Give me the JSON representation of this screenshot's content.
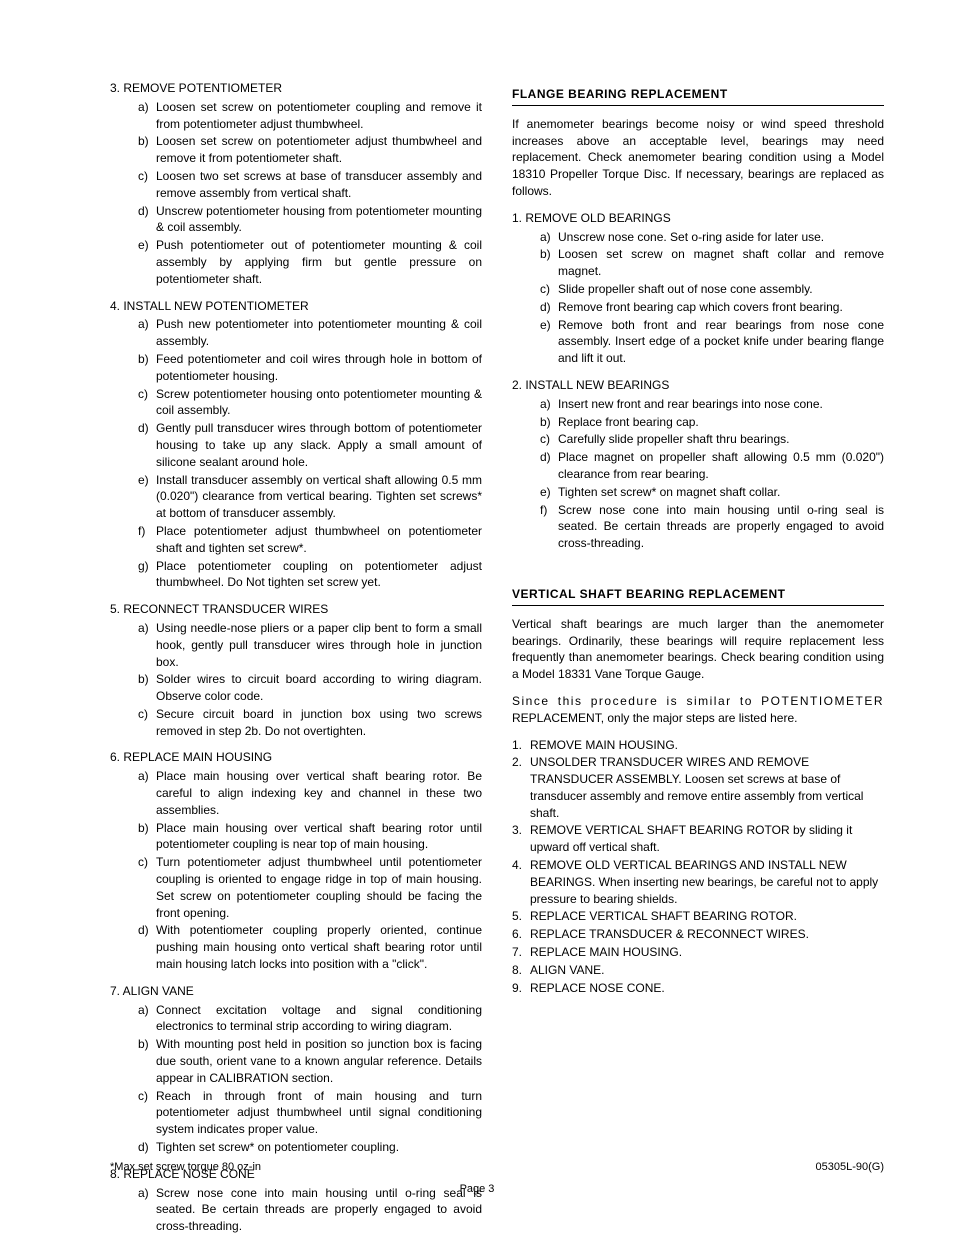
{
  "left": {
    "items": [
      {
        "num": "3.",
        "label": "REMOVE POTENTIOMETER",
        "subs": [
          {
            "l": "a)",
            "t": "Loosen set screw on potentiometer coupling and remove it from potentiometer adjust thumbwheel."
          },
          {
            "l": "b)",
            "t": "Loosen set screw on potentiometer adjust thumbwheel and remove it from potentiometer shaft."
          },
          {
            "l": "c)",
            "t": "Loosen two set screws at base of transducer assembly and remove assembly from vertical shaft."
          },
          {
            "l": "d)",
            "t": "Unscrew potentiometer housing from potentiometer mounting & coil assembly."
          },
          {
            "l": "e)",
            "t": "Push potentiometer out of potentiometer mounting & coil assembly by applying firm but gentle pressure on potentiometer shaft."
          }
        ]
      },
      {
        "num": "4.",
        "label": "INSTALL NEW  POTENTIOMETER",
        "subs": [
          {
            "l": "a)",
            "t": "Push new potentiometer into potentiometer mounting & coil assembly."
          },
          {
            "l": "b)",
            "t": "Feed potentiometer and coil wires through hole in bottom of potentiometer housing."
          },
          {
            "l": "c)",
            "t": "Screw potentiometer housing onto potentiometer mounting & coil assembly."
          },
          {
            "l": "d)",
            "t": "Gently pull transducer wires through bottom of potentiometer housing to take up any slack. Apply a small amount of silicone sealant around hole."
          },
          {
            "l": "e)",
            "t": "Install transducer assembly on vertical shaft allowing 0.5 mm (0.020\") clearance from vertical bearing.  Tighten set screws* at bottom of transducer assembly."
          },
          {
            "l": "f)",
            "t": "Place potentiometer adjust thumbwheel on potentiometer shaft and tighten set screw*."
          },
          {
            "l": "g)",
            "t": "Place potentiometer coupling on potentiometer  adjust thumbwheel. Do Not tighten set screw yet."
          }
        ]
      },
      {
        "num": "5.",
        "label": "RECONNECT TRANSDUCER  WIRES",
        "subs": [
          {
            "l": "a)",
            "t": "Using needle-nose pliers or a paper clip bent to form a small hook, gently pull transducer wires through hole in junction box."
          },
          {
            "l": "b)",
            "t": "Solder wires to circuit board according to wiring diagram. Observe color code."
          },
          {
            "l": "c)",
            "t": "Secure circuit board in junction box using two screws removed in step 2b. Do not overtighten."
          }
        ]
      },
      {
        "num": "6.",
        "label": "REPLACE  MAIN  HOUSING",
        "subs": [
          {
            "l": "a)",
            "t": "Place main housing over vertical shaft bearing rotor. Be careful to align indexing key and channel in these two assemblies."
          },
          {
            "l": "b)",
            "t": "Place main housing over vertical shaft bearing rotor until potentiometer coupling is near top of main housing."
          },
          {
            "l": "c)",
            "t": "Turn potentiometer adjust thumbwheel until potentiometer coupling is oriented to engage ridge in top of main housing. Set screw on potentiometer coupling should be facing the front opening."
          },
          {
            "l": "d)",
            "t": "With potentiometer coupling properly oriented, continue pushing main housing onto vertical shaft bearing rotor until main housing latch locks into position with a \"click\"."
          }
        ]
      },
      {
        "num": "7.",
        "label": "ALIGN  VANE",
        "subs": [
          {
            "l": "a)",
            "t": "Connect excitation voltage and signal conditioning electronics to terminal strip according to wiring diagram."
          },
          {
            "l": "b)",
            "t": "With mounting post held in position so junction box is facing due south, orient vane to a known angular reference. Details appear in CALIBRATION section."
          },
          {
            "l": "c)",
            "t": "Reach in through front of main housing and turn potentiometer adjust thumbwheel until signal conditioning system indicates proper value."
          },
          {
            "l": "d)",
            "t": "Tighten set screw* on potentiometer coupling."
          }
        ]
      },
      {
        "num": "8.",
        "label": "REPLACE  NOSE CONE",
        "subs": [
          {
            "l": "a)",
            "t": "Screw nose cone into main housing until o-ring seal is seated. Be certain threads are properly engaged to avoid cross-threading."
          }
        ]
      }
    ]
  },
  "right": {
    "flange": {
      "title": "FLANGE  BEARING  REPLACEMENT",
      "intro": "If anemometer bearings become noisy or wind speed threshold increases above an acceptable level, bearings may need replacement. Check anemometer bearing condition using a Model 18310 Propeller Torque Disc. If necessary, bearings are replaced as follows.",
      "items": [
        {
          "num": "1.",
          "label": "REMOVE OLD  BEARINGS",
          "subs": [
            {
              "l": "a)",
              "t": "Unscrew nose cone. Set o-ring aside for later use."
            },
            {
              "l": "b)",
              "t": "Loosen set screw on magnet shaft collar and remove magnet."
            },
            {
              "l": "c)",
              "t": "Slide propeller shaft out of nose cone assembly."
            },
            {
              "l": "d)",
              "t": "Remove front bearing cap which covers front bearing."
            },
            {
              "l": "e)",
              "t": "Remove both front and rear bearings from nose cone assembly. Insert edge of a pocket knife under bearing flange and lift it out."
            }
          ]
        },
        {
          "num": "2.",
          "label": "INSTALL  NEW  BEARINGS",
          "subs": [
            {
              "l": "a)",
              "t": "Insert new front and rear bearings into nose cone."
            },
            {
              "l": "b)",
              "t": "Replace front bearing cap."
            },
            {
              "l": "c)",
              "t": "Carefully slide propeller shaft thru bearings."
            },
            {
              "l": "d)",
              "t": "Place magnet on propeller shaft allowing 0.5 mm (0.020\") clearance from rear bearing."
            },
            {
              "l": "e)",
              "t": "Tighten set screw* on magnet shaft collar."
            },
            {
              "l": "f)",
              "t": "Screw nose cone into main housing until o-ring seal is seated. Be certain threads are properly engaged to avoid cross-threading."
            }
          ]
        }
      ]
    },
    "vertical": {
      "title": "VERTICAL SHAFT BEARING REPLACEMENT",
      "p1": "Vertical shaft bearings are much larger than the anemometer bearings. Ordinarily, these bearings will require replacement less frequently than anemometer bearings. Check bearing condition using a Model 18331 Vane Torque Gauge.",
      "p2a": "Since this procedure is similar to ",
      "p2b": "POTENTIOMETER",
      "p2c": " REPLACEMENT, only the major steps are listed here.",
      "steps": [
        {
          "n": "1.",
          "t": "REMOVE MAIN HOUSING."
        },
        {
          "n": "2.",
          "t": "UNSOLDER TRANSDUCER WIRES AND REMOVE TRANSDUCER ASSEMBLY. Loosen set screws at base of transducer assembly and remove entire assembly from vertical shaft."
        },
        {
          "n": "3.",
          "t": "REMOVE VERTICAL SHAFT BEARING ROTOR by sliding it upward off vertical shaft."
        },
        {
          "n": "4.",
          "t": "REMOVE OLD VERTICAL BEARINGS AND INSTALL NEW BEARINGS. When inserting new bearings, be careful not to apply pressure to bearing shields."
        },
        {
          "n": "5.",
          "t": "REPLACE VERTICAL SHAFT BEARING ROTOR."
        },
        {
          "n": "6.",
          "t": "REPLACE TRANSDUCER & RECONNECT WIRES."
        },
        {
          "n": "7.",
          "t": "REPLACE MAIN HOUSING."
        },
        {
          "n": "8.",
          "t": "ALIGN VANE."
        },
        {
          "n": "9.",
          "t": "REPLACE NOSE CONE."
        }
      ]
    }
  },
  "footer": {
    "left": "*Max set screw torque 80 oz-in",
    "right": "05305L-90(G)",
    "page": "Page 3"
  }
}
